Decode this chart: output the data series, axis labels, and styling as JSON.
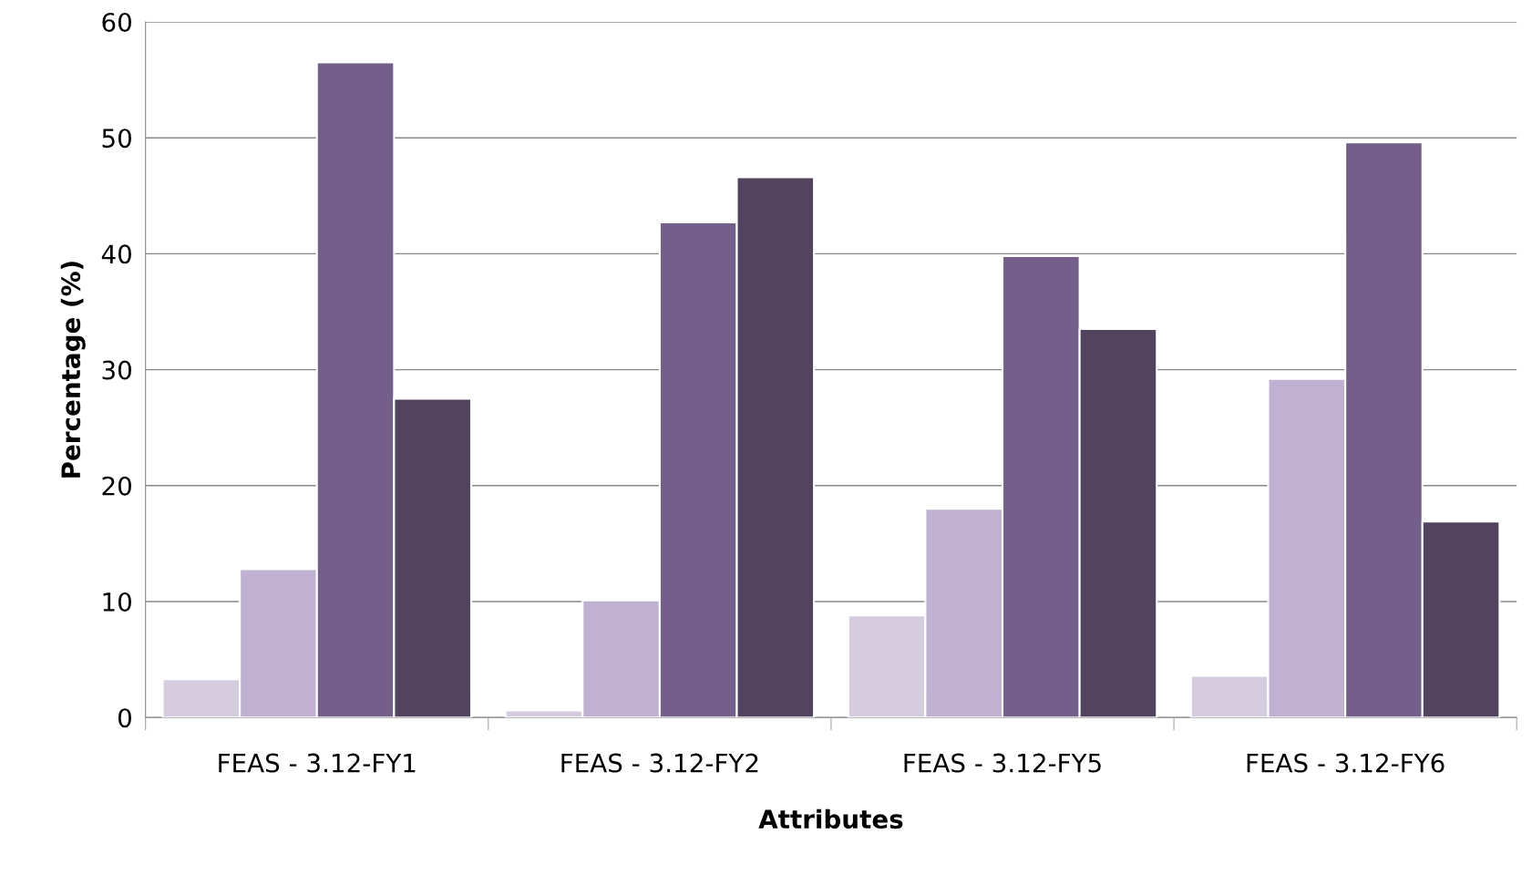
{
  "chart_data": {
    "type": "bar",
    "xlabel": "Attributes",
    "ylabel": "Percentage (%)",
    "categories": [
      "FEAS - 3.12-FY1",
      "FEAS - 3.12-FY2",
      "FEAS - 3.12-FY5",
      "FEAS - 3.12-FY6"
    ],
    "series": [
      {
        "color": "#d5cce0",
        "values": [
          3.3,
          0.6,
          8.8,
          3.6
        ]
      },
      {
        "color": "#c0b1d2",
        "values": [
          12.8,
          10.1,
          18.0,
          29.2
        ]
      },
      {
        "color": "#735f8a",
        "values": [
          56.5,
          42.7,
          39.8,
          49.6
        ]
      },
      {
        "color": "#52435f",
        "values": [
          27.5,
          46.6,
          33.5,
          16.9
        ]
      }
    ],
    "ylim": [
      0,
      60
    ],
    "yticks": [
      0,
      10,
      20,
      30,
      40,
      50,
      60
    ],
    "grid": "y",
    "legend": false
  }
}
